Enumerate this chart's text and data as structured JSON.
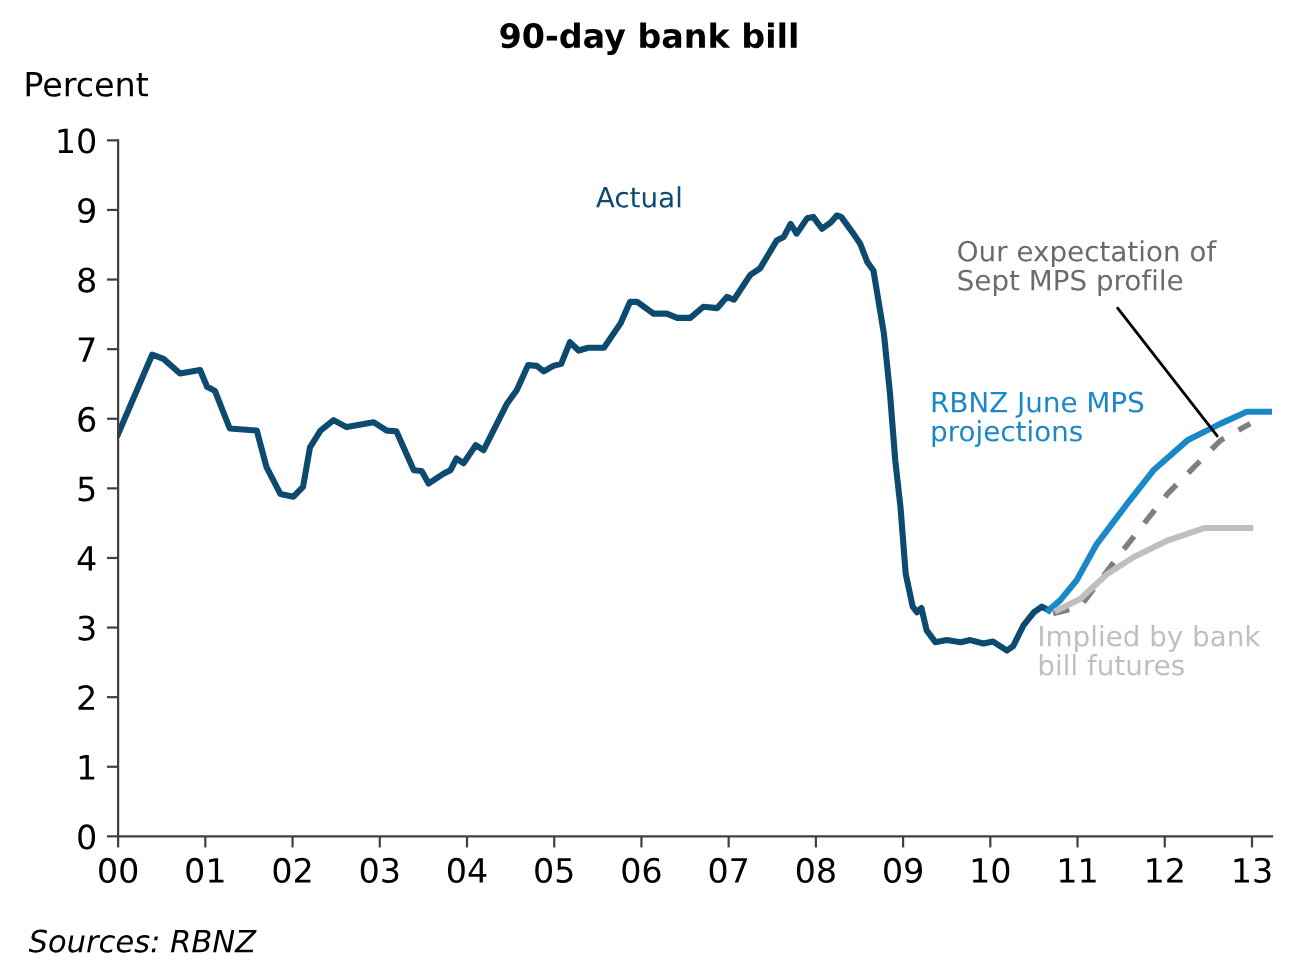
{
  "chart_data": {
    "type": "line",
    "title": "90-day bank bill",
    "ylabel": "Percent",
    "annotations": [
      "Sources: RBNZ"
    ],
    "xlim": [
      0,
      13.23
    ],
    "xticks": [
      {
        "value": 0,
        "label": "00"
      },
      {
        "value": 1,
        "label": "01"
      },
      {
        "value": 2,
        "label": "02"
      },
      {
        "value": 3,
        "label": "03"
      },
      {
        "value": 4,
        "label": "04"
      },
      {
        "value": 5,
        "label": "05"
      },
      {
        "value": 6,
        "label": "06"
      },
      {
        "value": 7,
        "label": "07"
      },
      {
        "value": 8,
        "label": "08"
      },
      {
        "value": 9,
        "label": "09"
      },
      {
        "value": 10,
        "label": "10"
      },
      {
        "value": 11,
        "label": "11"
      },
      {
        "value": 12,
        "label": "12"
      },
      {
        "value": 13,
        "label": "13"
      }
    ],
    "ylim": [
      0,
      10
    ],
    "yticks": [
      0,
      1,
      2,
      3,
      4,
      5,
      6,
      7,
      8,
      9,
      10
    ],
    "grid": false,
    "legend": false,
    "marker": "none",
    "series": [
      {
        "name": "Actual",
        "color": "#0d4a70",
        "line_style": "solid",
        "x": [
          0,
          0.39,
          0.52,
          0.71,
          0.94,
          1.02,
          1.11,
          1.28,
          1.59,
          1.7,
          1.86,
          2.01,
          2.12,
          2.2,
          2.32,
          2.47,
          2.62,
          2.93,
          3.08,
          3.19,
          3.39,
          3.48,
          3.56,
          3.73,
          3.81,
          3.88,
          3.96,
          4.1,
          4.19,
          4.46,
          4.57,
          4.7,
          4.8,
          4.88,
          4.99,
          5.08,
          5.18,
          5.28,
          5.39,
          5.57,
          5.76,
          5.87,
          5.95,
          6.14,
          6.29,
          6.41,
          6.56,
          6.71,
          6.87,
          6.98,
          7.06,
          7.25,
          7.36,
          7.55,
          7.63,
          7.71,
          7.78,
          7.9,
          7.97,
          8.07,
          8.17,
          8.24,
          8.29,
          8.43,
          8.51,
          8.59,
          8.66,
          8.78,
          8.85,
          8.91,
          8.97,
          9.03,
          9.11,
          9.16,
          9.21,
          9.27,
          9.37,
          9.5,
          9.66,
          9.77,
          9.92,
          10.03,
          10.19,
          10.26,
          10.38,
          10.5,
          10.59,
          10.67
        ],
        "values": [
          5.78,
          6.92,
          6.86,
          6.65,
          6.7,
          6.46,
          6.4,
          5.86,
          5.83,
          5.31,
          4.92,
          4.88,
          5.02,
          5.59,
          5.83,
          5.98,
          5.88,
          5.95,
          5.83,
          5.82,
          5.26,
          5.25,
          5.07,
          5.21,
          5.26,
          5.43,
          5.36,
          5.62,
          5.55,
          6.22,
          6.41,
          6.77,
          6.76,
          6.68,
          6.76,
          6.79,
          7.1,
          6.98,
          7.02,
          7.02,
          7.37,
          7.68,
          7.68,
          7.51,
          7.51,
          7.45,
          7.45,
          7.61,
          7.59,
          7.75,
          7.71,
          8.07,
          8.16,
          8.56,
          8.61,
          8.8,
          8.66,
          8.88,
          8.9,
          8.73,
          8.82,
          8.92,
          8.9,
          8.66,
          8.51,
          8.25,
          8.13,
          7.22,
          6.36,
          5.4,
          4.73,
          3.77,
          3.3,
          3.22,
          3.28,
          2.96,
          2.79,
          2.82,
          2.79,
          2.82,
          2.77,
          2.8,
          2.67,
          2.73,
          3.03,
          3.22,
          3.3,
          3.25
        ]
      },
      {
        "name": "RBNZ June MPS projections",
        "color": "#1a87c9",
        "line_style": "solid",
        "x": [
          10.67,
          10.8,
          10.99,
          11.22,
          11.57,
          11.87,
          12.26,
          12.64,
          12.94,
          13.21
        ],
        "values": [
          3.25,
          3.39,
          3.68,
          4.2,
          4.78,
          5.26,
          5.69,
          5.93,
          6.1,
          6.1
        ]
      },
      {
        "name": "Our expectation of Sept MPS profile",
        "color": "#7f7f7f",
        "line_style": "dashed",
        "x": [
          10.72,
          11.03,
          11.49,
          12.03,
          12.64,
          12.98
        ],
        "values": [
          3.2,
          3.3,
          4.06,
          4.92,
          5.69,
          5.93
        ]
      },
      {
        "name": "Implied by bank bill futures",
        "color": "#bfbfbf",
        "line_style": "solid",
        "x": [
          10.77,
          11.03,
          11.34,
          11.64,
          12.03,
          12.45,
          12.98
        ],
        "values": [
          3.25,
          3.41,
          3.77,
          4.01,
          4.25,
          4.43,
          4.43
        ]
      }
    ]
  }
}
